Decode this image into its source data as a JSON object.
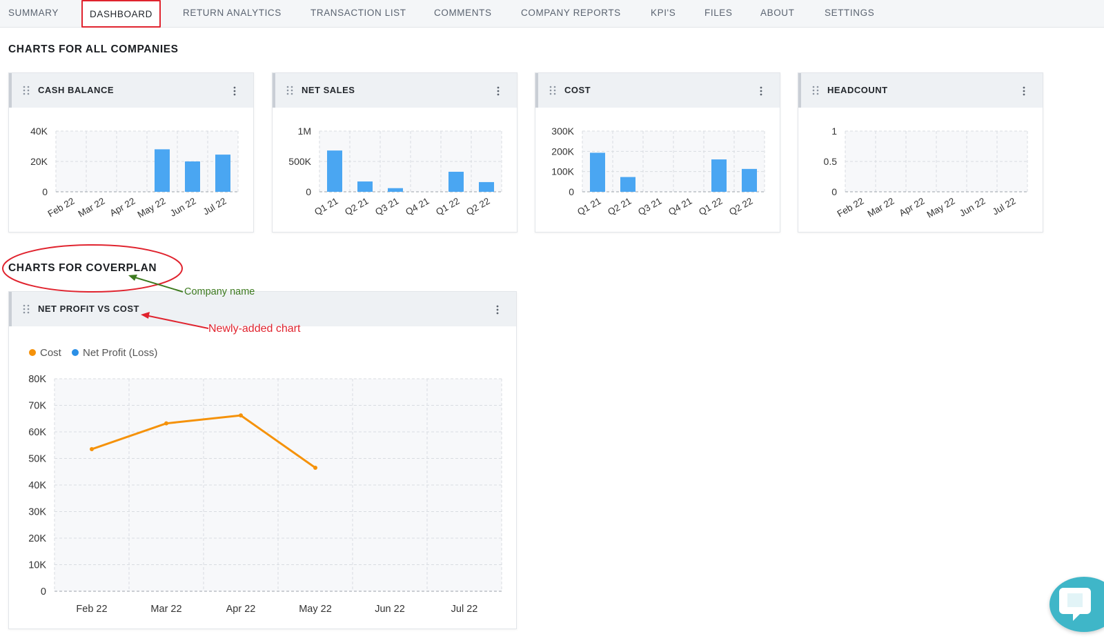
{
  "nav": {
    "tabs": [
      {
        "label": "SUMMARY",
        "active": false
      },
      {
        "label": "DASHBOARD",
        "active": true
      },
      {
        "label": "RETURN ANALYTICS",
        "active": false
      },
      {
        "label": "TRANSACTION LIST",
        "active": false
      },
      {
        "label": "COMMENTS",
        "active": false
      },
      {
        "label": "COMPANY REPORTS",
        "active": false
      },
      {
        "label": "KPI'S",
        "active": false
      },
      {
        "label": "FILES",
        "active": false
      },
      {
        "label": "ABOUT",
        "active": false
      },
      {
        "label": "SETTINGS",
        "active": false
      }
    ]
  },
  "sections": {
    "all_companies_title": "CHARTS FOR ALL COMPANIES",
    "company_title": "CHARTS FOR COVERPLAN"
  },
  "annotations": {
    "company_name": "Company name",
    "new_chart": "Newly-added chart",
    "company_color": "#3d7a1f",
    "new_chart_color": "#e0232e"
  },
  "colors": {
    "bar": "#4aa6f2",
    "cost_line": "#f5920a",
    "net_profit": "#2b8fe6"
  },
  "chart_data": [
    {
      "id": "cash",
      "title": "CASH BALANCE",
      "type": "bar",
      "categories": [
        "Feb 22",
        "Mar 22",
        "Apr 22",
        "May 22",
        "Jun 22",
        "Jul 22"
      ],
      "values": [
        0,
        0,
        0,
        28000,
        20000,
        24500
      ],
      "ylim": [
        0,
        40000
      ],
      "ytick_values": [
        0,
        20000,
        40000
      ],
      "yticks": [
        "0",
        "20K",
        "40K"
      ],
      "grid": true
    },
    {
      "id": "sales",
      "title": "NET SALES",
      "type": "bar",
      "categories": [
        "Q1 21",
        "Q2 21",
        "Q3 21",
        "Q4 21",
        "Q1 22",
        "Q2 22"
      ],
      "values": [
        680000,
        170000,
        60000,
        0,
        330000,
        160000
      ],
      "ylim": [
        0,
        1000000
      ],
      "ytick_values": [
        0,
        500000,
        1000000
      ],
      "yticks": [
        "0",
        "500K",
        "1M"
      ],
      "grid": true
    },
    {
      "id": "cost",
      "title": "COST",
      "type": "bar",
      "categories": [
        "Q1 21",
        "Q2 21",
        "Q3 21",
        "Q4 21",
        "Q1 22",
        "Q2 22"
      ],
      "values": [
        193000,
        73000,
        0,
        0,
        160000,
        113000
      ],
      "ylim": [
        0,
        300000
      ],
      "ytick_values": [
        0,
        100000,
        200000,
        300000
      ],
      "yticks": [
        "0",
        "100K",
        "200K",
        "300K"
      ],
      "grid": true
    },
    {
      "id": "headcount",
      "title": "HEADCOUNT",
      "type": "bar",
      "categories": [
        "Feb 22",
        "Mar 22",
        "Apr 22",
        "May 22",
        "Jun 22",
        "Jul 22"
      ],
      "values": [
        0,
        0,
        0,
        0,
        0,
        0
      ],
      "ylim": [
        0,
        1
      ],
      "ytick_values": [
        0,
        0.5,
        1
      ],
      "yticks": [
        "0",
        "0.5",
        "1"
      ],
      "grid": true
    },
    {
      "id": "netprofit",
      "title": "NET PROFIT VS COST",
      "type": "line",
      "categories": [
        "Feb 22",
        "Mar 22",
        "Apr 22",
        "May 22",
        "Jun 22",
        "Jul 22"
      ],
      "legend": [
        "Cost",
        "Net Profit (Loss)"
      ],
      "legend_position": "top-left",
      "series": [
        {
          "name": "Cost",
          "values": [
            53500,
            63200,
            66200,
            46500,
            null,
            null
          ]
        },
        {
          "name": "Net Profit (Loss)",
          "values": [
            null,
            null,
            null,
            null,
            null,
            null
          ]
        }
      ],
      "ylim": [
        0,
        80000
      ],
      "ytick_values": [
        0,
        10000,
        20000,
        30000,
        40000,
        50000,
        60000,
        70000,
        80000
      ],
      "yticks": [
        "0",
        "10K",
        "20K",
        "30K",
        "40K",
        "50K",
        "60K",
        "70K",
        "80K"
      ],
      "grid": true
    }
  ]
}
